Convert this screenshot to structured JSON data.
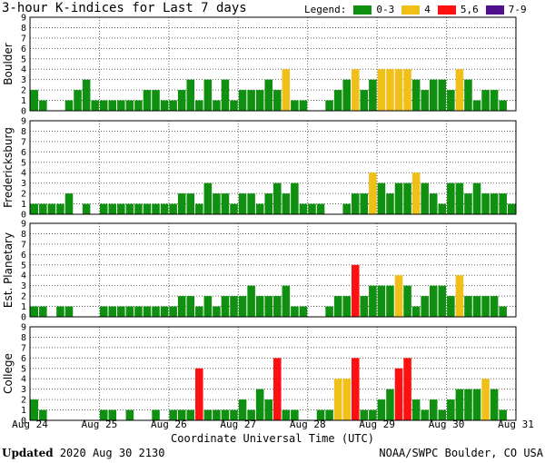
{
  "title": "3-hour K-indices for Last 7 days",
  "legend": {
    "label": "Legend:",
    "items": [
      {
        "label": "0-3",
        "color": "#109010"
      },
      {
        "label": "4",
        "color": "#f0c018"
      },
      {
        "label": "5,6",
        "color": "#ff1010"
      },
      {
        "label": "7-9",
        "color": "#501090"
      }
    ]
  },
  "footer": {
    "updated_label": "Updated",
    "updated_value": "2020 Aug 30 2130",
    "credit": "NOAA/SWPC Boulder, CO USA"
  },
  "chart_data": {
    "type": "bar",
    "xlabel": "Coordinate Universal Time (UTC)",
    "x_ticks": [
      "Aug 24",
      "Aug 25",
      "Aug 26",
      "Aug 27",
      "Aug 28",
      "Aug 29",
      "Aug 30",
      "Aug 31"
    ],
    "y_ticks": [
      "0",
      "1",
      "2",
      "3",
      "4",
      "5",
      "6",
      "7",
      "8",
      "9"
    ],
    "ylim": [
      0,
      9
    ],
    "color_scale": [
      {
        "range": "0-3",
        "color": "#109010"
      },
      {
        "range": "4",
        "color": "#f0c018"
      },
      {
        "range": "5-6",
        "color": "#ff1010"
      },
      {
        "range": "7-9",
        "color": "#501090"
      }
    ],
    "bars_per_day": 8,
    "panels": [
      {
        "name": "Boulder",
        "values": [
          2,
          1,
          0,
          0,
          1,
          2,
          3,
          1,
          1,
          1,
          1,
          1,
          1,
          2,
          2,
          1,
          1,
          2,
          3,
          1,
          3,
          1,
          3,
          1,
          2,
          2,
          2,
          3,
          2,
          4,
          1,
          1,
          0,
          0,
          1,
          2,
          3,
          4,
          2,
          3,
          4,
          4,
          4,
          4,
          3,
          2,
          3,
          3,
          2,
          4,
          3,
          1,
          2,
          2,
          1,
          0
        ]
      },
      {
        "name": "Fredericksburg",
        "values": [
          1,
          1,
          1,
          1,
          2,
          0,
          1,
          0,
          1,
          1,
          1,
          1,
          1,
          1,
          1,
          1,
          1,
          2,
          2,
          1,
          3,
          2,
          2,
          1,
          2,
          2,
          1,
          2,
          3,
          2,
          3,
          1,
          1,
          1,
          0,
          0,
          1,
          2,
          2,
          4,
          3,
          2,
          3,
          3,
          4,
          3,
          2,
          1,
          3,
          3,
          2,
          3,
          2,
          2,
          2,
          1
        ]
      },
      {
        "name": "Est. Planetary",
        "values": [
          1,
          1,
          0,
          1,
          1,
          0,
          0,
          0,
          1,
          1,
          1,
          1,
          1,
          1,
          1,
          1,
          1,
          2,
          2,
          1,
          2,
          1,
          2,
          2,
          2,
          3,
          2,
          2,
          2,
          3,
          1,
          1,
          0,
          0,
          1,
          2,
          2,
          5,
          2,
          3,
          3,
          3,
          4,
          3,
          1,
          2,
          3,
          3,
          2,
          4,
          2,
          2,
          2,
          2,
          1,
          0
        ]
      },
      {
        "name": "College",
        "values": [
          2,
          1,
          0,
          0,
          0,
          0,
          0,
          0,
          1,
          1,
          0,
          1,
          0,
          0,
          1,
          0,
          1,
          1,
          1,
          5,
          1,
          1,
          1,
          1,
          2,
          1,
          3,
          2,
          6,
          1,
          1,
          0,
          0,
          1,
          1,
          4,
          4,
          6,
          1,
          1,
          2,
          3,
          5,
          6,
          2,
          1,
          2,
          1,
          2,
          3,
          3,
          3,
          4,
          3,
          1,
          0
        ]
      }
    ]
  }
}
